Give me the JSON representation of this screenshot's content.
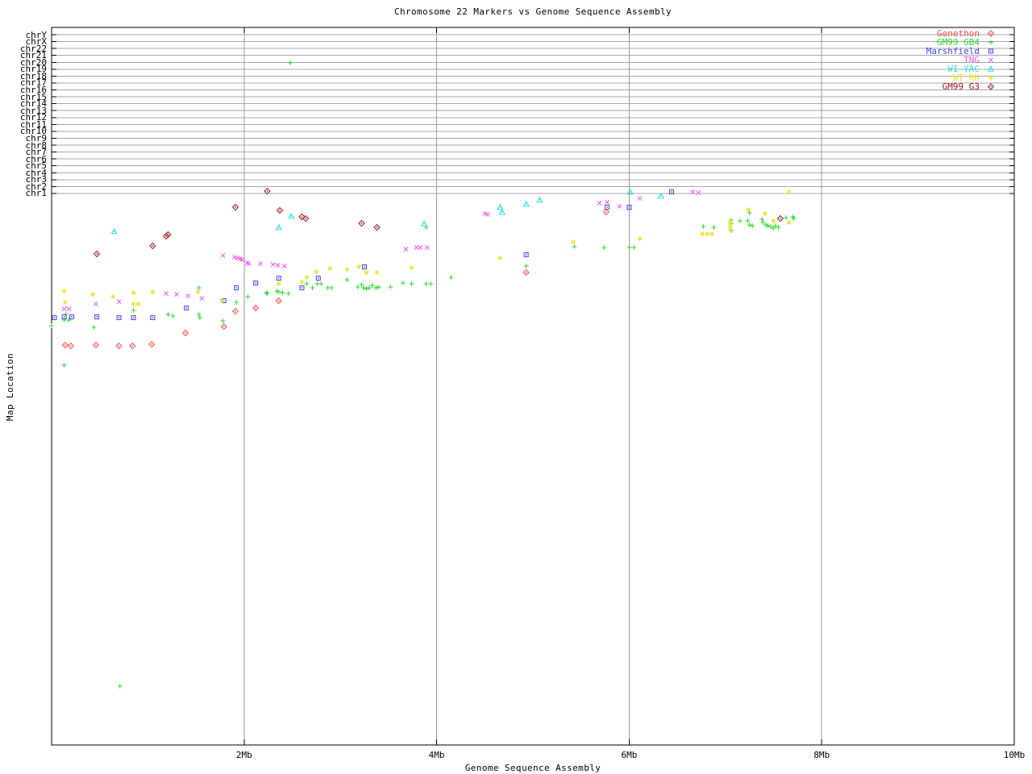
{
  "chart": {
    "title": "Chromosome 22 Markers vs Genome Sequence Assembly",
    "xlabel": "Genome Sequence Assembly",
    "ylabel": "Map Location"
  },
  "chart_data": {
    "type": "scatter",
    "title": "Chromosome 22 Markers vs Genome Sequence Assembly",
    "xlabel": "Genome Sequence Assembly",
    "ylabel": "Map Location",
    "x_unit": "Mb",
    "xlim": [
      0,
      10
    ],
    "x_ticks": [
      "2Mb",
      "4Mb",
      "6Mb",
      "8Mb",
      "10Mb"
    ],
    "x_tick_values": [
      2,
      4,
      6,
      8,
      10
    ],
    "y_categories": [
      "chrY",
      "chrX",
      "chr22",
      "chr21",
      "chr20",
      "chr19",
      "chr18",
      "chr17",
      "chr16",
      "chr15",
      "chr14",
      "chr13",
      "chr12",
      "chr11",
      "chr10",
      "chr9",
      "chr8",
      "chr7",
      "chr6",
      "chr5",
      "chr4",
      "chr3",
      "chr2",
      "chr1"
    ],
    "y_unit_note": "x of each point is Mb on the assembly; y is unlabeled map-location position read from the plot in screen pixels (plot top=34, bottom=924); chromosome gridlines occupy the top band",
    "grid": "on",
    "legend_position": "top-right",
    "grid_color": "#a6a6a6",
    "series": [
      {
        "name": "Genethon",
        "color": "#f05050",
        "marker": "diamond-dot",
        "points": [
          [
            0.14,
            428
          ],
          [
            0.2,
            429
          ],
          [
            0.46,
            428
          ],
          [
            0.7,
            429
          ],
          [
            0.84,
            429
          ],
          [
            1.04,
            427
          ],
          [
            1.39,
            413
          ],
          [
            1.79,
            405
          ],
          [
            1.91,
            386
          ],
          [
            2.12,
            382
          ],
          [
            2.36,
            373
          ],
          [
            4.93,
            338
          ],
          [
            5.76,
            263
          ]
        ]
      },
      {
        "name": "GM99 GB4",
        "color": "#33d633",
        "marker": "plus",
        "points": [
          [
            0.0,
            404
          ],
          [
            0.13,
            453
          ],
          [
            0.13,
            397
          ],
          [
            0.15,
            390
          ],
          [
            0.18,
            397
          ],
          [
            0.44,
            406
          ],
          [
            0.71,
            851
          ],
          [
            0.85,
            385
          ],
          [
            1.21,
            390
          ],
          [
            1.26,
            392
          ],
          [
            1.53,
            357
          ],
          [
            1.53,
            390
          ],
          [
            1.54,
            394
          ],
          [
            1.78,
            398
          ],
          [
            1.92,
            375
          ],
          [
            2.04,
            368
          ],
          [
            2.23,
            363
          ],
          [
            2.24,
            364
          ],
          [
            2.34,
            361
          ],
          [
            2.36,
            362
          ],
          [
            2.4,
            363
          ],
          [
            2.46,
            364
          ],
          [
            2.48,
            78
          ],
          [
            2.65,
            352
          ],
          [
            2.71,
            357
          ],
          [
            2.76,
            352
          ],
          [
            2.8,
            352
          ],
          [
            2.87,
            357
          ],
          [
            2.91,
            357
          ],
          [
            3.07,
            347
          ],
          [
            3.18,
            356
          ],
          [
            3.22,
            353
          ],
          [
            3.24,
            357
          ],
          [
            3.27,
            358
          ],
          [
            3.3,
            357
          ],
          [
            3.33,
            354
          ],
          [
            3.37,
            357
          ],
          [
            3.4,
            356
          ],
          [
            3.52,
            356
          ],
          [
            3.65,
            351
          ],
          [
            3.74,
            352
          ],
          [
            3.89,
            352
          ],
          [
            3.89,
            282
          ],
          [
            3.94,
            352
          ],
          [
            4.15,
            344
          ],
          [
            4.93,
            330
          ],
          [
            5.43,
            306
          ],
          [
            5.74,
            307
          ],
          [
            6.0,
            307
          ],
          [
            6.05,
            307
          ],
          [
            6.77,
            281
          ],
          [
            6.88,
            282
          ],
          [
            7.06,
            273
          ],
          [
            7.06,
            277
          ],
          [
            7.06,
            286
          ],
          [
            7.15,
            274
          ],
          [
            7.23,
            274
          ],
          [
            7.25,
            264
          ],
          [
            7.25,
            279
          ],
          [
            7.28,
            280
          ],
          [
            7.38,
            272
          ],
          [
            7.39,
            276
          ],
          [
            7.42,
            279
          ],
          [
            7.44,
            280
          ],
          [
            7.47,
            281
          ],
          [
            7.5,
            283
          ],
          [
            7.52,
            280
          ],
          [
            7.55,
            282
          ],
          [
            7.63,
            270
          ],
          [
            7.7,
            269
          ],
          [
            7.71,
            271
          ]
        ]
      },
      {
        "name": "Marshfield",
        "color": "#4545e8",
        "marker": "square-dot",
        "points": [
          [
            0.03,
            394
          ],
          [
            0.13,
            393
          ],
          [
            0.21,
            393
          ],
          [
            0.47,
            393
          ],
          [
            0.7,
            394
          ],
          [
            0.85,
            394
          ],
          [
            1.05,
            394
          ],
          [
            1.4,
            382
          ],
          [
            1.79,
            373
          ],
          [
            1.92,
            357
          ],
          [
            2.12,
            351
          ],
          [
            2.36,
            345
          ],
          [
            2.6,
            357
          ],
          [
            2.77,
            345
          ],
          [
            3.25,
            331
          ],
          [
            4.93,
            316
          ],
          [
            5.77,
            257
          ],
          [
            6.0,
            257
          ],
          [
            6.44,
            238
          ]
        ]
      },
      {
        "name": "TNG",
        "color": "#ee58ee",
        "marker": "cross",
        "points": [
          [
            0.13,
            383
          ],
          [
            0.18,
            383
          ],
          [
            0.46,
            377
          ],
          [
            0.7,
            374
          ],
          [
            1.19,
            364
          ],
          [
            1.3,
            365
          ],
          [
            1.42,
            367
          ],
          [
            1.56,
            370
          ],
          [
            1.78,
            317
          ],
          [
            1.9,
            319
          ],
          [
            1.93,
            320
          ],
          [
            1.96,
            321
          ],
          [
            1.98,
            322
          ],
          [
            2.03,
            326
          ],
          [
            2.05,
            327
          ],
          [
            2.17,
            327
          ],
          [
            2.3,
            328
          ],
          [
            2.35,
            329
          ],
          [
            2.42,
            330
          ],
          [
            3.68,
            309
          ],
          [
            3.79,
            307
          ],
          [
            3.83,
            307
          ],
          [
            3.9,
            307
          ],
          [
            4.5,
            265
          ],
          [
            4.53,
            266
          ],
          [
            5.69,
            252
          ],
          [
            5.77,
            251
          ],
          [
            5.9,
            256
          ],
          [
            6.11,
            246
          ],
          [
            6.66,
            238
          ],
          [
            6.72,
            239
          ]
        ]
      },
      {
        "name": "WI YAC",
        "color": "#30dede",
        "marker": "triangle-dot",
        "points": [
          [
            0.65,
            287
          ],
          [
            2.36,
            282
          ],
          [
            2.49,
            268
          ],
          [
            3.87,
            277
          ],
          [
            4.66,
            257
          ],
          [
            4.68,
            263
          ],
          [
            4.93,
            253
          ],
          [
            5.07,
            248
          ],
          [
            6.01,
            238
          ],
          [
            6.33,
            243
          ]
        ]
      },
      {
        "name": "WI RH",
        "color": "#e6e632",
        "marker": "asterisk",
        "points": [
          [
            0.13,
            361
          ],
          [
            0.14,
            375
          ],
          [
            0.43,
            365
          ],
          [
            0.64,
            368
          ],
          [
            0.85,
            363
          ],
          [
            0.85,
            377
          ],
          [
            0.9,
            377
          ],
          [
            1.05,
            362
          ],
          [
            1.52,
            362
          ],
          [
            1.77,
            373
          ],
          [
            2.36,
            352
          ],
          [
            2.6,
            350
          ],
          [
            2.65,
            344
          ],
          [
            2.75,
            337
          ],
          [
            2.89,
            333
          ],
          [
            3.07,
            334
          ],
          [
            3.19,
            331
          ],
          [
            3.27,
            338
          ],
          [
            3.38,
            338
          ],
          [
            3.74,
            332
          ],
          [
            4.66,
            320
          ],
          [
            5.42,
            300
          ],
          [
            6.11,
            296
          ],
          [
            6.76,
            290
          ],
          [
            6.81,
            290
          ],
          [
            6.86,
            290
          ],
          [
            7.05,
            275
          ],
          [
            7.05,
            280
          ],
          [
            7.05,
            284
          ],
          [
            7.24,
            260
          ],
          [
            7.41,
            265
          ],
          [
            7.5,
            274
          ],
          [
            7.66,
            276
          ],
          [
            7.66,
            238
          ]
        ]
      },
      {
        "name": "GM99 G3",
        "color": "#9c1c1c",
        "marker": "diamond-dot",
        "points": [
          [
            0.47,
            315
          ],
          [
            1.05,
            305
          ],
          [
            1.19,
            293
          ],
          [
            1.21,
            291
          ],
          [
            1.91,
            257
          ],
          [
            2.24,
            237
          ],
          [
            2.37,
            261
          ],
          [
            2.6,
            269
          ],
          [
            2.64,
            271
          ],
          [
            3.22,
            277
          ],
          [
            3.38,
            282
          ],
          [
            7.57,
            271
          ]
        ]
      }
    ]
  }
}
